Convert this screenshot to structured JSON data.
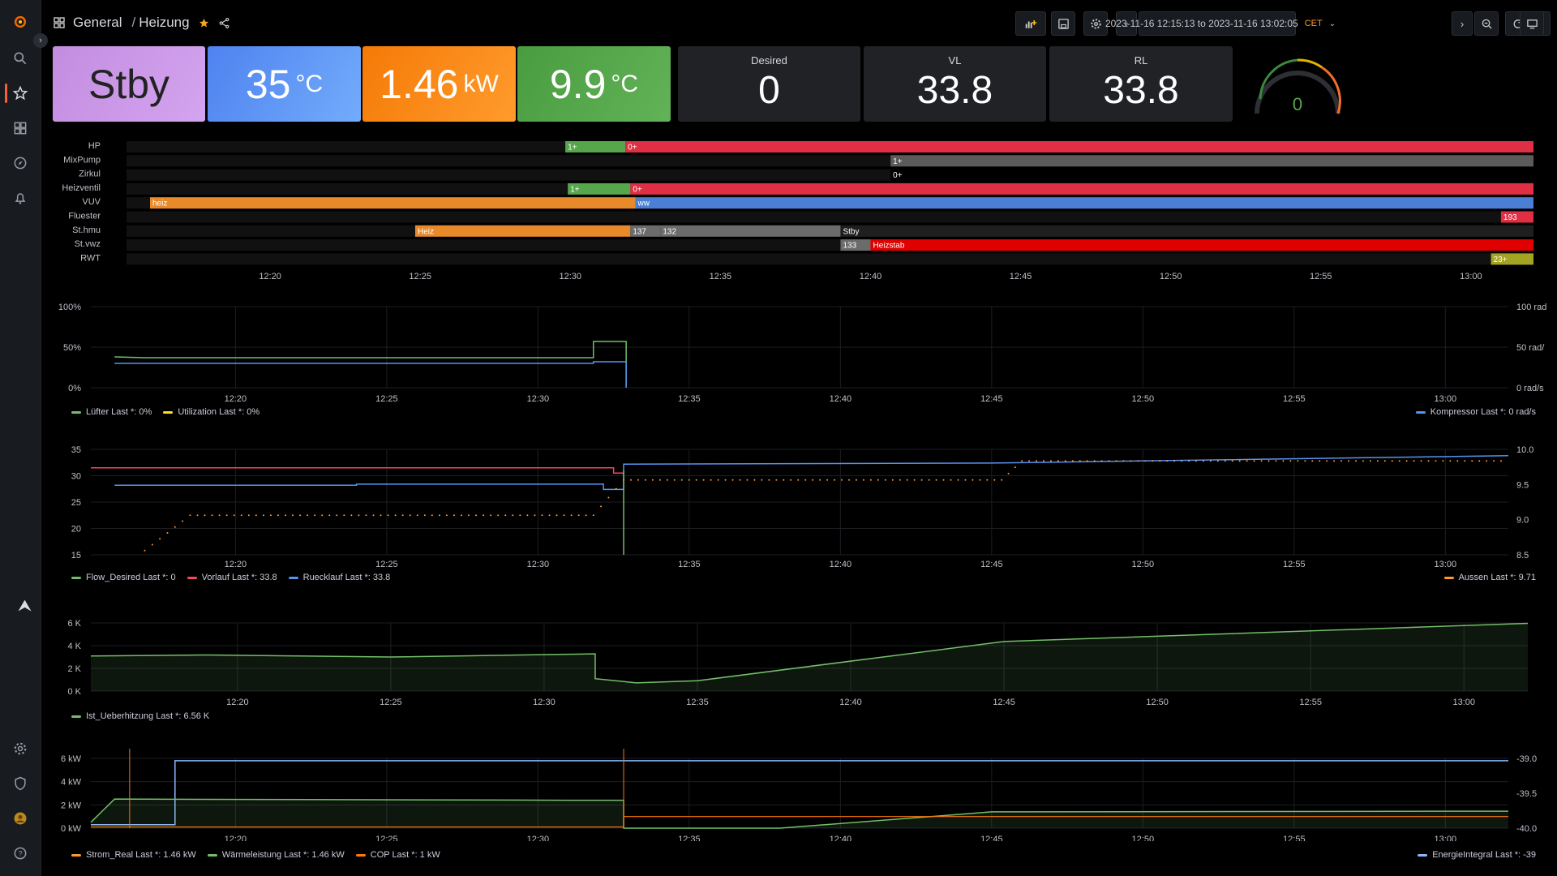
{
  "breadcrumb": {
    "folder": "General",
    "separator": "/",
    "dashboard": "Heizung"
  },
  "time_range": {
    "label": "2023-11-16 12:15:13 to 2023-11-16 13:02:05",
    "tz": "CET"
  },
  "stats": [
    {
      "value": "Stby",
      "unit": "",
      "color": "#ca95e5"
    },
    {
      "value": "35",
      "unit": "°C",
      "color": "#5794f2"
    },
    {
      "value": "1.46",
      "unit": "kW",
      "color": "#ff780a"
    },
    {
      "value": "9.9",
      "unit": "°C",
      "color": "#56a64b"
    }
  ],
  "dark_stats": [
    {
      "label": "Desired",
      "value": "0"
    },
    {
      "label": "VL",
      "value": "33.8"
    },
    {
      "label": "RL",
      "value": "33.8"
    }
  ],
  "gauge": {
    "value": "0"
  },
  "timeline": {
    "rows": [
      "HP",
      "MixPump",
      "Zirkul",
      "Heizventil",
      "VUV",
      "Fluester",
      "St.hmu",
      "St.vwz",
      "RWT"
    ],
    "segments": [
      {
        "row": 0,
        "start": "12:29:50",
        "end": "12:31:50",
        "label": "1+",
        "color": "#56a64b"
      },
      {
        "row": 0,
        "start": "12:31:50",
        "end": "13:02:05",
        "label": "0+",
        "color": "#e02f44"
      },
      {
        "row": 1,
        "start": "12:40:40",
        "end": "13:02:05",
        "label": "1+",
        "color": "#5b5b5b"
      },
      {
        "row": 2,
        "start": "12:40:40",
        "end": "13:02:05",
        "label": "0+",
        "color": "#000000"
      },
      {
        "row": 3,
        "start": "12:29:55",
        "end": "12:32:00",
        "label": "1+",
        "color": "#56a64b"
      },
      {
        "row": 3,
        "start": "12:32:00",
        "end": "13:02:05",
        "label": "0+",
        "color": "#e02f44"
      },
      {
        "row": 4,
        "start": "12:16:00",
        "end": "12:32:10",
        "label": "heiz",
        "color": "#e8892a"
      },
      {
        "row": 4,
        "start": "12:32:10",
        "end": "13:02:05",
        "label": "ww",
        "color": "#4b7fd6"
      },
      {
        "row": 5,
        "start": "13:01:00",
        "end": "13:02:05",
        "label": "193",
        "color": "#e02f44"
      },
      {
        "row": 6,
        "start": "12:24:50",
        "end": "12:32:00",
        "label": "Heiz",
        "color": "#e8892a"
      },
      {
        "row": 6,
        "start": "12:32:00",
        "end": "12:33:00",
        "label": "137",
        "color": "#6b6b6b"
      },
      {
        "row": 6,
        "start": "12:33:00",
        "end": "12:39:00",
        "label": "132",
        "color": "#6b6b6b"
      },
      {
        "row": 6,
        "start": "12:39:00",
        "end": "13:02:05",
        "label": "Stby",
        "color": "#1f1f1f"
      },
      {
        "row": 7,
        "start": "12:39:00",
        "end": "12:40:00",
        "label": "133",
        "color": "#6b6b6b"
      },
      {
        "row": 7,
        "start": "12:40:00",
        "end": "13:02:05",
        "label": "Heizstab",
        "color": "#e00000"
      },
      {
        "row": 8,
        "start": "13:00:40",
        "end": "13:02:05",
        "label": "23+",
        "color": "#a4a422"
      }
    ],
    "x_ticks": [
      "12:20",
      "12:25",
      "12:30",
      "12:35",
      "12:40",
      "12:45",
      "12:50",
      "12:55",
      "13:00"
    ]
  },
  "chart_data": [
    {
      "type": "line",
      "x_ticks": [
        "12:20",
        "12:25",
        "12:30",
        "12:35",
        "12:40",
        "12:45",
        "12:50",
        "12:55",
        "13:00"
      ],
      "y_ticks": [
        "100%",
        "50%",
        "0%"
      ],
      "y2_ticks": [
        "100 rad",
        "50 rad/",
        "0 rad/s"
      ],
      "series": [
        {
          "name": "Lüfter",
          "color": "#73bf69",
          "x": [
            "12:16:00",
            "12:17:00",
            "12:31:50",
            "12:31:50",
            "12:32:55",
            "12:32:55"
          ],
          "y": [
            38,
            37,
            37,
            57,
            57,
            0
          ]
        },
        {
          "name": "Utilization",
          "color": "#fade2a",
          "x": [],
          "y": []
        },
        {
          "name": "Kompressor",
          "color": "#5794f2",
          "axis": "right",
          "x": [
            "12:16:00",
            "12:31:50",
            "12:31:50",
            "12:32:55",
            "12:32:55"
          ],
          "y": [
            30,
            30,
            32,
            32,
            0
          ]
        }
      ],
      "legend": [
        {
          "text": "Lüfter  Last *: 0%",
          "color": "#73bf69"
        },
        {
          "text": "Utilization  Last *: 0%",
          "color": "#fade2a"
        }
      ],
      "legend_right": [
        {
          "text": "Kompressor  Last *: 0 rad/s",
          "color": "#5794f2"
        }
      ]
    },
    {
      "type": "line",
      "x_ticks": [
        "12:20",
        "12:25",
        "12:30",
        "12:35",
        "12:40",
        "12:45",
        "12:50",
        "12:55",
        "13:00"
      ],
      "y_ticks": [
        "35",
        "30",
        "25",
        "20",
        "15"
      ],
      "y2_ticks": [
        "10.0",
        "9.5",
        "9.0",
        "8.5"
      ],
      "legend": [
        {
          "text": "Flow_Desired  Last *: 0",
          "color": "#73bf69"
        },
        {
          "text": "Vorlauf  Last *: 33.8",
          "color": "#f2495c"
        },
        {
          "text": "Ruecklauf  Last *: 33.8",
          "color": "#5794f2"
        }
      ],
      "legend_right": [
        {
          "text": "Aussen  Last *: 9.71",
          "color": "#ff9830"
        }
      ]
    },
    {
      "type": "area",
      "x_ticks": [
        "12:20",
        "12:25",
        "12:30",
        "12:35",
        "12:40",
        "12:45",
        "12:50",
        "12:55",
        "13:00"
      ],
      "y_ticks": [
        "6 K",
        "4 K",
        "2 K",
        "0 K"
      ],
      "legend": [
        {
          "text": "Ist_Ueberhitzung  Last *: 6.56 K",
          "color": "#73bf69"
        }
      ]
    },
    {
      "type": "line",
      "x_ticks": [
        "12:20",
        "12:25",
        "12:30",
        "12:35",
        "12:40",
        "12:45",
        "12:50",
        "12:55",
        "13:00"
      ],
      "y_ticks": [
        "6 kW",
        "4 kW",
        "2 kW",
        "0 kW"
      ],
      "y2_ticks": [
        "-39.0",
        "-39.5",
        "-40.0"
      ],
      "legend": [
        {
          "text": "Strom_Real  Last *: 1.46 kW",
          "color": "#ff9830"
        },
        {
          "text": "Wärmeleistung  Last *: 1.46 kW",
          "color": "#73bf69"
        },
        {
          "text": "COP  Last *: 1 kW",
          "color": "#ff780a"
        }
      ],
      "legend_right": [
        {
          "text": "EnergieIntegral  Last *: -39",
          "color": "#8ab8ff"
        }
      ]
    }
  ]
}
